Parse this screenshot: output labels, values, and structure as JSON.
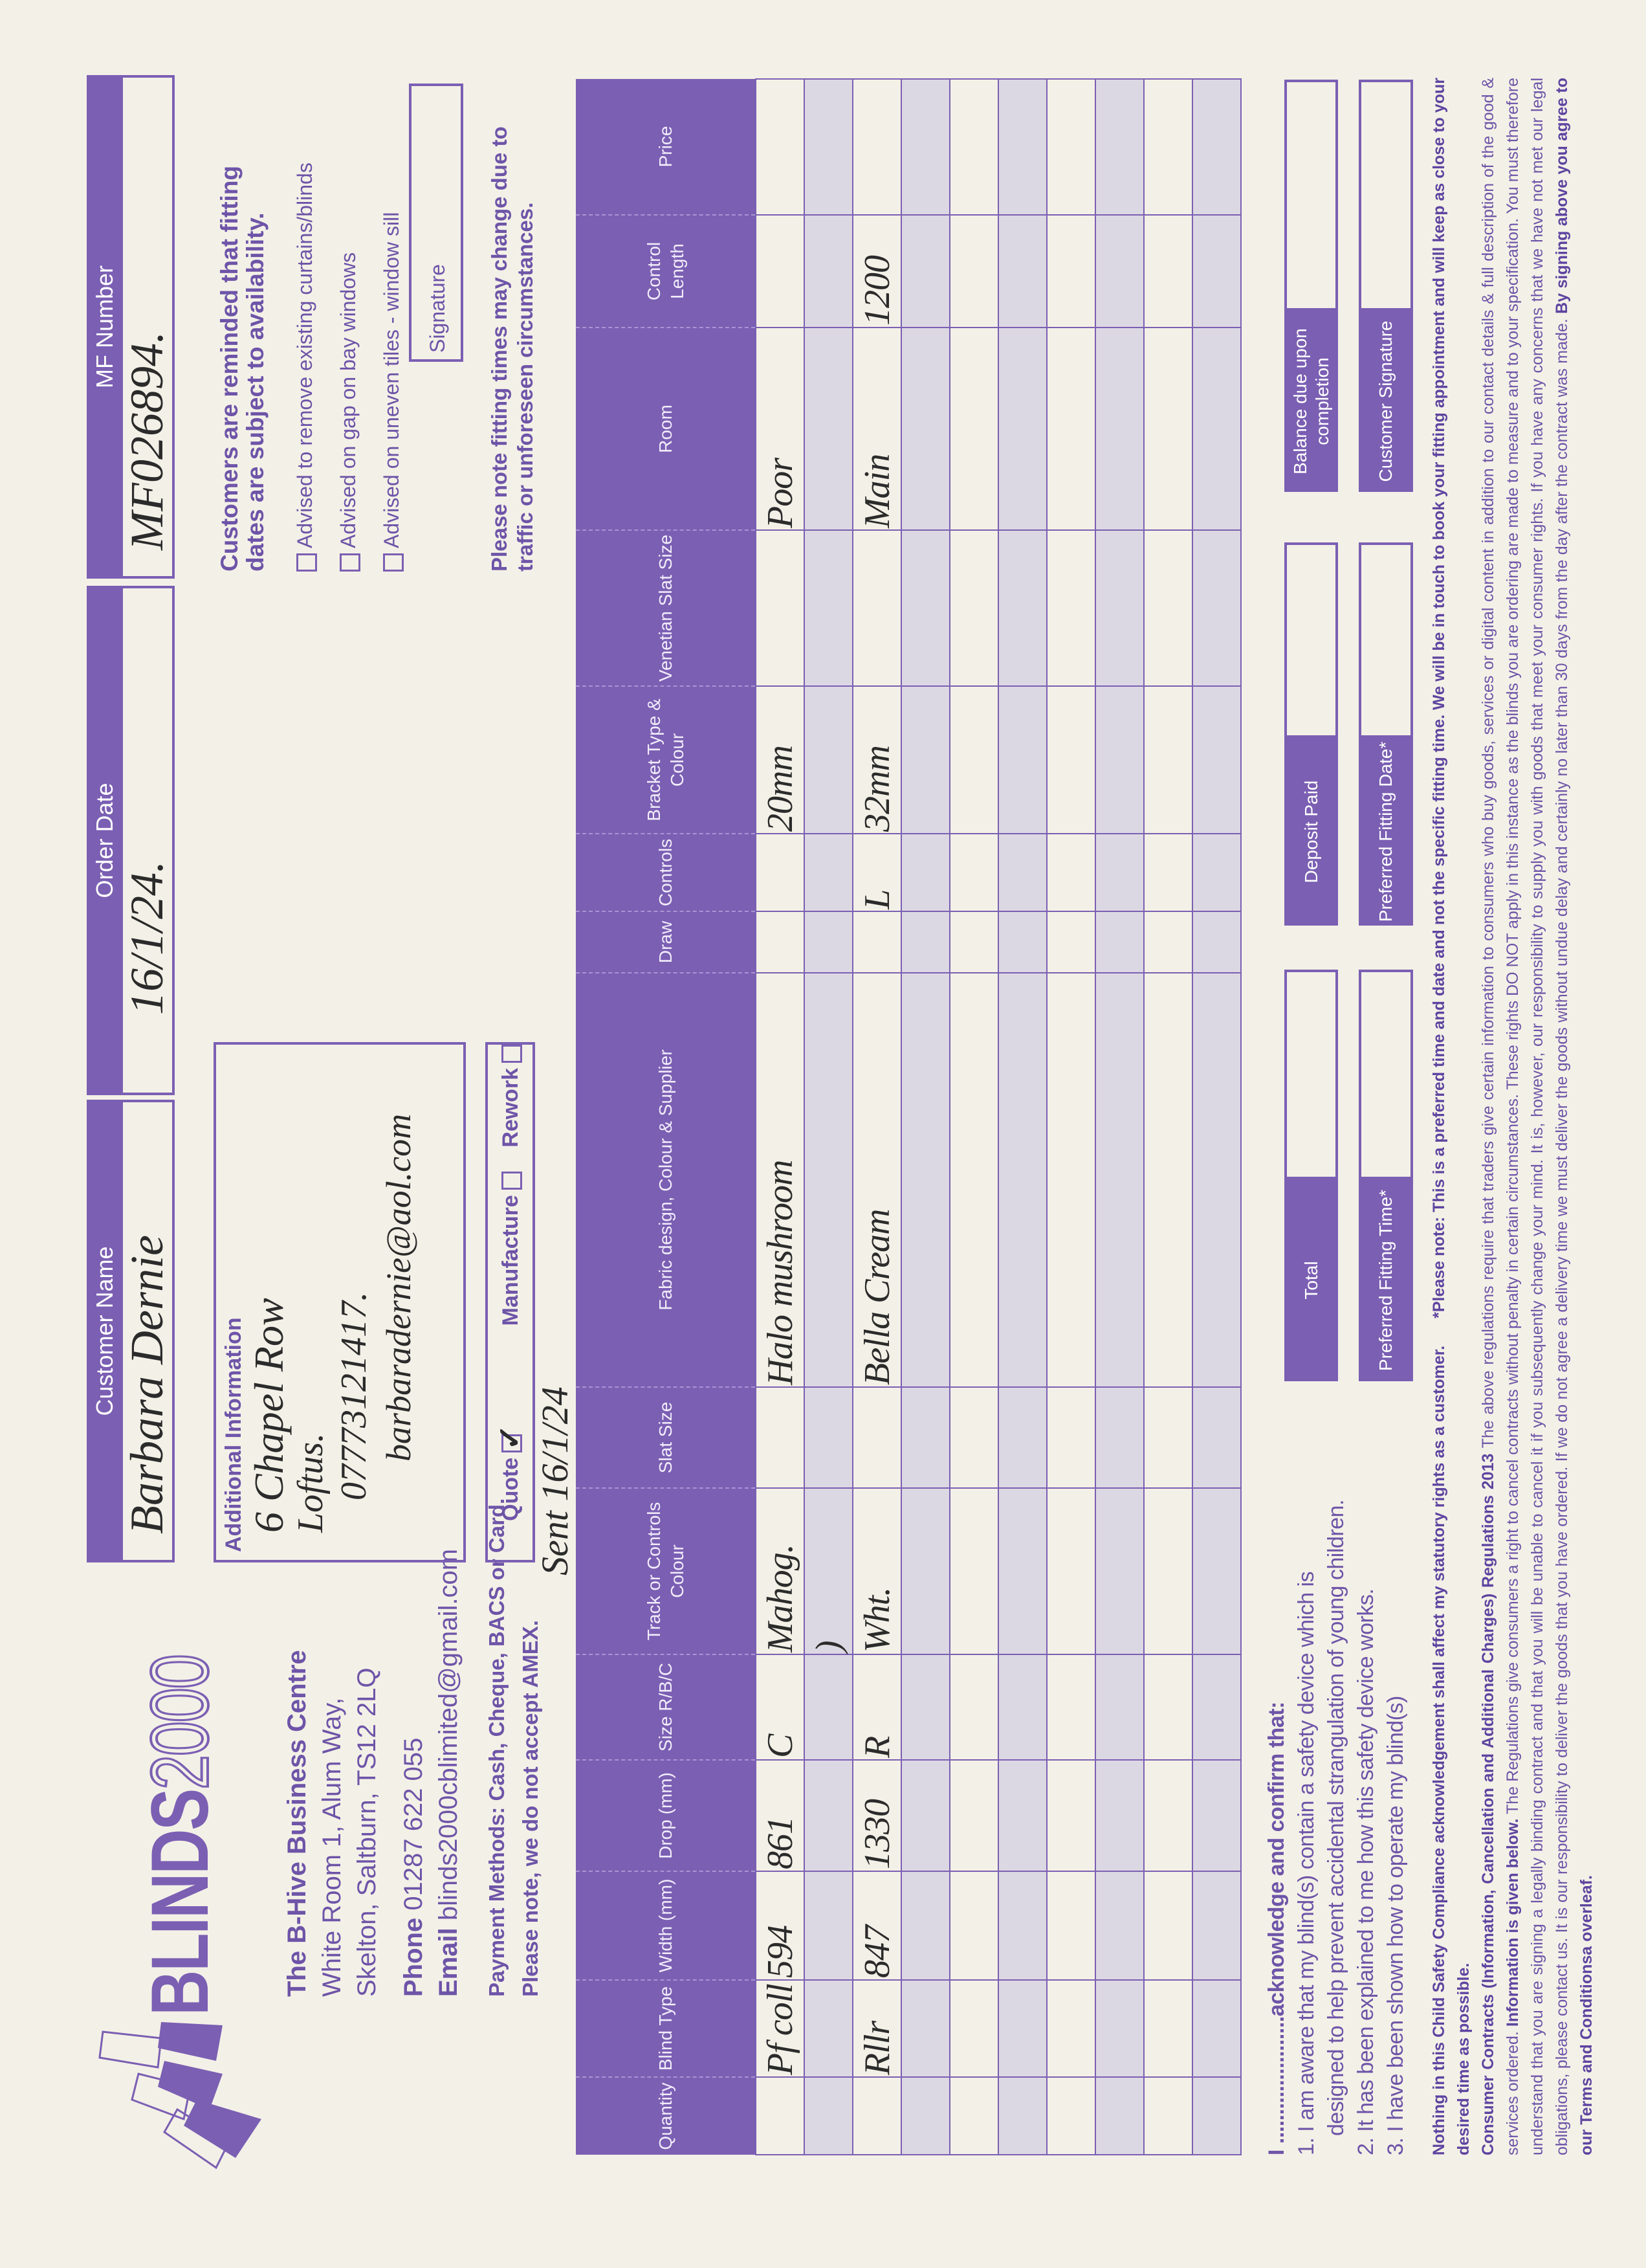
{
  "colors": {
    "brand_purple": "#7b5fb3",
    "paper": "#f3f1e7",
    "shaded_row": "#dcd8e3"
  },
  "header": {
    "customer_name_label": "Customer Name",
    "customer_name": "Barbara Dernie",
    "order_date_label": "Order Date",
    "order_date": "16/1/24.",
    "mf_number_label": "MF Number",
    "mf_number": "MF026894."
  },
  "logo": {
    "text_bold": "BLINDS",
    "text_outline": "2000"
  },
  "company": {
    "name": "The B-Hive Business Centre",
    "address_1": "White Room 1, Alum Way,",
    "address_2": "Skelton, Saltburn, TS12 2LQ",
    "phone_label": "Phone",
    "phone": "01287 622 055",
    "email_label": "Email",
    "email": "blinds2000cblimited@gmail.com",
    "payment_methods": "Payment Methods: Cash, Cheque, BACS or Card.",
    "amex_note": "Please note, we do not accept AMEX."
  },
  "additional_info": {
    "label": "Additional Information",
    "lines": [
      "6 Chapel Row",
      "Loftus.",
      "07773121417.",
      "barbaradernie@aol.com"
    ]
  },
  "status": {
    "quote_label": "Quote",
    "quote_checked": true,
    "manufacture_label": "Manufacture",
    "manufacture_checked": false,
    "rework_label": "Rework",
    "rework_checked": false,
    "sent_note": "Sent 16/1/24"
  },
  "fitting": {
    "reminder_1": "Customers are reminded that fitting",
    "reminder_2": "dates are subject to availability.",
    "advisories": [
      {
        "label": "Advised to remove existing curtains/blinds",
        "checked": false
      },
      {
        "label": "Advised on gap on bay windows",
        "checked": false
      },
      {
        "label": "Advised on uneven tiles - window sill",
        "checked": false
      }
    ],
    "signature_label": "Signature",
    "note_1": "Please note fitting times may change due to",
    "note_2": "traffic or unforeseen circumstances."
  },
  "table": {
    "columns": [
      "Quantity",
      "Blind Type",
      "Width (mm)",
      "Drop (mm)",
      "Size R/B/C",
      "Track or Controls Colour",
      "Slat Size",
      "Fabric design, Colour & Supplier",
      "Draw",
      "Controls",
      "Bracket Type & Colour",
      "Venetian Slat Size",
      "Room",
      "Control Length",
      "Price"
    ],
    "rows": [
      [
        "",
        "Pf coll",
        "594",
        "861",
        "C",
        "Mahog.",
        "",
        "Halo mushroom",
        "",
        "",
        "20mm",
        "",
        "Poor",
        "",
        ""
      ],
      [
        "",
        "",
        "",
        "",
        "",
        ")",
        "",
        "",
        "",
        "",
        "",
        "",
        "",
        "",
        ""
      ],
      [
        "",
        "Rllr",
        "847",
        "1330",
        "R",
        "Wht.",
        "",
        "Bella Cream",
        "",
        "L",
        "32mm",
        "",
        "Main",
        "1200",
        ""
      ],
      [
        "",
        "",
        "",
        "",
        "",
        "",
        "",
        "",
        "",
        "",
        "",
        "",
        "",
        "",
        ""
      ],
      [
        "",
        "",
        "",
        "",
        "",
        "",
        "",
        "",
        "",
        "",
        "",
        "",
        "",
        "",
        ""
      ],
      [
        "",
        "",
        "",
        "",
        "",
        "",
        "",
        "",
        "",
        "",
        "",
        "",
        "",
        "",
        ""
      ],
      [
        "",
        "",
        "",
        "",
        "",
        "",
        "",
        "",
        "",
        "",
        "",
        "",
        "",
        "",
        ""
      ],
      [
        "",
        "",
        "",
        "",
        "",
        "",
        "",
        "",
        "",
        "",
        "",
        "",
        "",
        "",
        ""
      ],
      [
        "",
        "",
        "",
        "",
        "",
        "",
        "",
        "",
        "",
        "",
        "",
        "",
        "",
        "",
        ""
      ],
      [
        "",
        "",
        "",
        "",
        "",
        "",
        "",
        "",
        "",
        "",
        "",
        "",
        "",
        "",
        ""
      ]
    ]
  },
  "acknowledgement": {
    "heading_prefix": "I ......................",
    "heading": "acknowledge and confirm that:",
    "item_1a": "1. I am aware that my blind(s) contain a safety device which is",
    "item_1b": "designed to help prevent accidental strangulation of young children.",
    "item_2": "2. It has been explained to me how this safety device works.",
    "item_3": "3. I have been shown how to operate my blind(s)"
  },
  "summary": {
    "total_label": "Total",
    "deposit_label": "Deposit Paid",
    "balance_label": "Balance due upon completion",
    "pref_time_label": "Preferred Fitting Time*",
    "pref_date_label": "Preferred Fitting Date*",
    "customer_signature_label": "Customer Signature"
  },
  "fine_print": {
    "child_safety": "Nothing in this Child Safety Compliance acknowledgement shall affect my statutory rights as a customer.",
    "fitting_note": "*Please note: This is a preferred time and date and not the specific fitting time. We will be in touch to book your fitting appointment and will keep as close to your desired time as possible.",
    "regs_title": "Consumer Contracts (Information, Cancellation and Additional Charges) Regulations 2013",
    "regs_text_1": "The above regulations require that traders give certain information to consumers who buy goods, services or digital content in addition to our contact details & full description of the good & services ordered.",
    "regs_info": "Information is given below.",
    "regs_text_2": "The Regulations give consumers a right to cancel contracts without penalty in certain circumstances. These rights DO NOT apply in this instance as the blinds you are ordering are made to measure and to your specification. You must therefore understand that you are signing a legally binding contract and that you will be unable to cancel it if you subsequently change your mind. It is, however, our responsibility to supply you with goods that meet your consumer rights. If you have any concerns that we have not met our legal obligations, please contact us. It is our responsibility to deliver the goods that you have ordered. If we do not agree a delivery time we must deliver the goods without undue delay and certainly no later than 30 days from the day after the contract was made.",
    "signing": "By signing above you agree to our Terms and Conditionsa overleaf."
  }
}
